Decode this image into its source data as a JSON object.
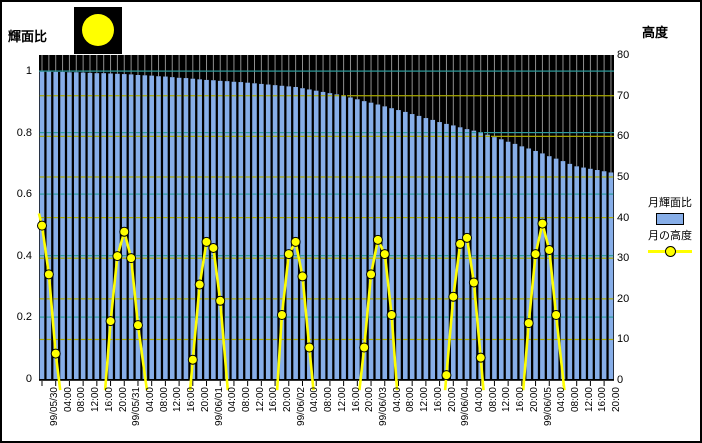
{
  "axes": {
    "left_title": "輝面比",
    "right_title": "高度"
  },
  "legend": {
    "bar_label": "月輝面比",
    "line_label": "月の高度"
  },
  "colors": {
    "bar": "#87AEE8",
    "line": "#FFFF00",
    "marker_fill": "#FFFF00",
    "marker_stroke": "#000000",
    "teal_grid": "#2E9E9E",
    "yellow_grid": "#ABAB00",
    "vline_gray": "#909090",
    "plot_bg": "#000000",
    "moon_icon": "#FFFF00"
  },
  "chart_data": {
    "type": "bar+line combo",
    "title": "",
    "x_start": "99/05/30 00:00",
    "x_step_hours": 2,
    "x_tick_labels": [
      "99/05/30",
      "04:00",
      "08:00",
      "12:00",
      "16:00",
      "20:00",
      "99/05/31",
      "04:00",
      "08:00",
      "12:00",
      "16:00",
      "20:00",
      "99/06/01",
      "04:00",
      "08:00",
      "12:00",
      "16:00",
      "20:00",
      "99/06/02",
      "04:00",
      "08:00",
      "12:00",
      "16:00",
      "20:00",
      "99/06/03",
      "04:00",
      "08:00",
      "12:00",
      "16:00",
      "20:00",
      "99/06/04",
      "04:00",
      "08:00",
      "12:00",
      "16:00",
      "20:00",
      "99/06/05",
      "04:00",
      "08:00",
      "12:00",
      "16:00",
      "20:00"
    ],
    "left_axis": {
      "title": "輝面比",
      "min": 0,
      "max": 1,
      "tick_labels": [
        "1",
        "0.8",
        "0.6",
        "0.4",
        "0.2",
        "0"
      ],
      "tick_values": [
        1,
        0.8,
        0.6,
        0.4,
        0.2,
        0
      ]
    },
    "right_axis": {
      "title": "高度",
      "min": 0,
      "max": 80,
      "tick_labels": [
        "80",
        "70",
        "60",
        "50",
        "40",
        "30",
        "20",
        "10",
        "0"
      ],
      "tick_values": [
        80,
        70,
        60,
        50,
        40,
        30,
        20,
        10,
        0
      ]
    },
    "gridlines": {
      "teal_fraction_lines": [
        1.0,
        0.8,
        0.6,
        0.4,
        0.2
      ],
      "yellow_altitude_lines": [
        70,
        60,
        50,
        40,
        30,
        20,
        10
      ]
    },
    "series": [
      {
        "name": "月輝面比",
        "type": "bar",
        "values": [
          0.998,
          0.998,
          0.997,
          0.997,
          0.996,
          0.996,
          0.995,
          0.994,
          0.993,
          0.993,
          0.992,
          0.991,
          0.99,
          0.989,
          0.987,
          0.986,
          0.985,
          0.983,
          0.982,
          0.98,
          0.978,
          0.977,
          0.975,
          0.973,
          0.971,
          0.97,
          0.968,
          0.967,
          0.965,
          0.964,
          0.962,
          0.96,
          0.958,
          0.956,
          0.954,
          0.952,
          0.95,
          0.948,
          0.944,
          0.94,
          0.936,
          0.932,
          0.928,
          0.924,
          0.92,
          0.914,
          0.908,
          0.902,
          0.897,
          0.891,
          0.885,
          0.879,
          0.873,
          0.867,
          0.86,
          0.854,
          0.847,
          0.841,
          0.834,
          0.828,
          0.823,
          0.817,
          0.811,
          0.806,
          0.8,
          0.793,
          0.785,
          0.778,
          0.77,
          0.763,
          0.755,
          0.748,
          0.74,
          0.732,
          0.723,
          0.715,
          0.707,
          0.698,
          0.69,
          0.686,
          0.682,
          0.678,
          0.674,
          0.67
        ]
      },
      {
        "name": "月の高度",
        "type": "line",
        "unit": "deg",
        "note": "arcs of [time_index(2h steps), altitude, has_marker]",
        "arcs": [
          [
            [
              -0.45,
              41,
              0
            ],
            [
              0,
              38,
              1
            ],
            [
              1,
              26,
              1
            ],
            [
              2,
              6.5,
              1
            ],
            [
              2.65,
              -2.5,
              0
            ]
          ],
          [
            [
              9.2,
              -2.5,
              0
            ],
            [
              10,
              14.5,
              1
            ],
            [
              11,
              30.5,
              1
            ],
            [
              12,
              36.5,
              1
            ],
            [
              13,
              30,
              1
            ],
            [
              14,
              13.5,
              1
            ],
            [
              15.3,
              -2.5,
              0
            ]
          ],
          [
            [
              21.6,
              -2.5,
              0
            ],
            [
              22,
              5,
              1
            ],
            [
              23,
              23.5,
              1
            ],
            [
              24,
              34,
              1
            ],
            [
              25,
              32.5,
              1
            ],
            [
              26,
              19.5,
              1
            ],
            [
              27.1,
              -2.5,
              0
            ]
          ],
          [
            [
              34.3,
              -2.5,
              0
            ],
            [
              35,
              16,
              1
            ],
            [
              36,
              31,
              1
            ],
            [
              37,
              34,
              1
            ],
            [
              38,
              25.5,
              1
            ],
            [
              39,
              8,
              1
            ],
            [
              39.6,
              -2.5,
              0
            ]
          ],
          [
            [
              46.3,
              -2.5,
              0
            ],
            [
              47,
              8,
              1
            ],
            [
              48,
              26,
              1
            ],
            [
              49,
              34.5,
              1
            ],
            [
              50,
              31,
              1
            ],
            [
              51,
              16,
              1
            ],
            [
              51.8,
              -2.5,
              0
            ]
          ],
          [
            [
              58.8,
              -2.5,
              0
            ],
            [
              59,
              1.2,
              1
            ],
            [
              60,
              20.5,
              1
            ],
            [
              61,
              33.5,
              1
            ],
            [
              62,
              35,
              1
            ],
            [
              63,
              24,
              1
            ],
            [
              64,
              5.5,
              1
            ],
            [
              64.4,
              -2.5,
              0
            ]
          ],
          [
            [
              70.2,
              -2.5,
              0
            ],
            [
              71,
              14,
              1
            ],
            [
              72,
              31,
              1
            ],
            [
              73,
              38.5,
              1
            ],
            [
              74,
              32,
              1
            ],
            [
              75,
              16,
              1
            ],
            [
              76.2,
              -2.5,
              0
            ]
          ]
        ]
      }
    ]
  }
}
